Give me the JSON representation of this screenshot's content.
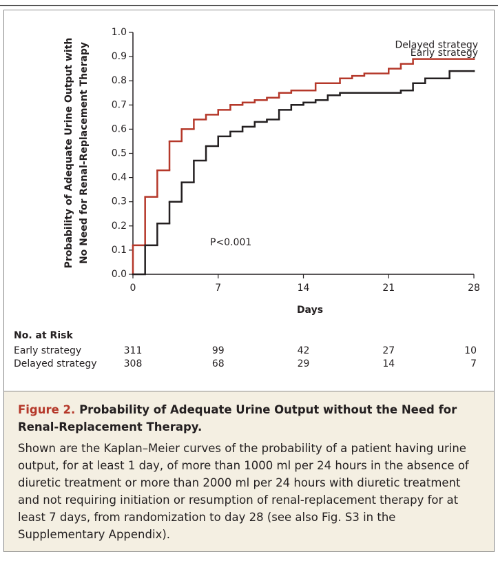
{
  "chart_data": {
    "type": "step",
    "ylabel": [
      "Probability of Adequate Urine Output with",
      "No Need for Renal-Replacement Therapy"
    ],
    "xlabel": "Days",
    "xlim": [
      0,
      28
    ],
    "xticks": [
      0,
      7,
      14,
      21,
      28
    ],
    "ylim": [
      0,
      1
    ],
    "yticks": [
      {
        "value": 0,
        "label": "0.0"
      },
      0.1,
      0.2,
      0.3,
      0.4,
      0.5,
      0.6,
      0.7,
      0.8,
      0.9,
      {
        "value": 1,
        "label": "1.0"
      }
    ],
    "annotation": "P<0.001",
    "series": [
      {
        "name": "Delayed strategy",
        "color": "#b5382a",
        "x": [
          0,
          1,
          2,
          3,
          4,
          5,
          6,
          7,
          8,
          9,
          10,
          11,
          12,
          13,
          15,
          17,
          18,
          19,
          21,
          22,
          23,
          28
        ],
        "values": [
          0.12,
          0.32,
          0.43,
          0.55,
          0.6,
          0.64,
          0.66,
          0.68,
          0.7,
          0.71,
          0.72,
          0.73,
          0.75,
          0.76,
          0.79,
          0.81,
          0.82,
          0.83,
          0.85,
          0.87,
          0.89,
          0.89
        ]
      },
      {
        "name": "Early strategy",
        "color": "#231f20",
        "x": [
          0,
          1,
          2,
          3,
          4,
          5,
          6,
          7,
          8,
          9,
          10,
          11,
          12,
          13,
          14,
          15,
          16,
          17,
          22,
          23,
          24,
          26,
          28
        ],
        "values": [
          0.0,
          0.12,
          0.21,
          0.3,
          0.38,
          0.47,
          0.53,
          0.57,
          0.59,
          0.61,
          0.63,
          0.64,
          0.68,
          0.7,
          0.71,
          0.72,
          0.74,
          0.75,
          0.76,
          0.79,
          0.81,
          0.84,
          0.84
        ]
      }
    ],
    "risk_table": {
      "title": "No. at Risk",
      "rows": [
        {
          "name": "Early strategy",
          "values": [
            311,
            99,
            42,
            27,
            10
          ]
        },
        {
          "name": "Delayed strategy",
          "values": [
            308,
            68,
            29,
            14,
            7
          ]
        }
      ]
    }
  },
  "caption": {
    "label": "Figure 2.",
    "title": "Probability of Adequate Urine Output without the Need for Renal-Replacement Therapy.",
    "text": "Shown are the Kaplan–Meier curves of the probability of a patient having urine output, for at least 1 day, of more than 1000 ml per 24 hours in the absence of diuretic treatment or more than 2000 ml per 24 hours with diuretic treatment and not requiring initiation or resumption of renal-replacement therapy for at least 7 days, from randomization to day 28 (see also Fig. S3 in the Supplementary Appendix)."
  }
}
